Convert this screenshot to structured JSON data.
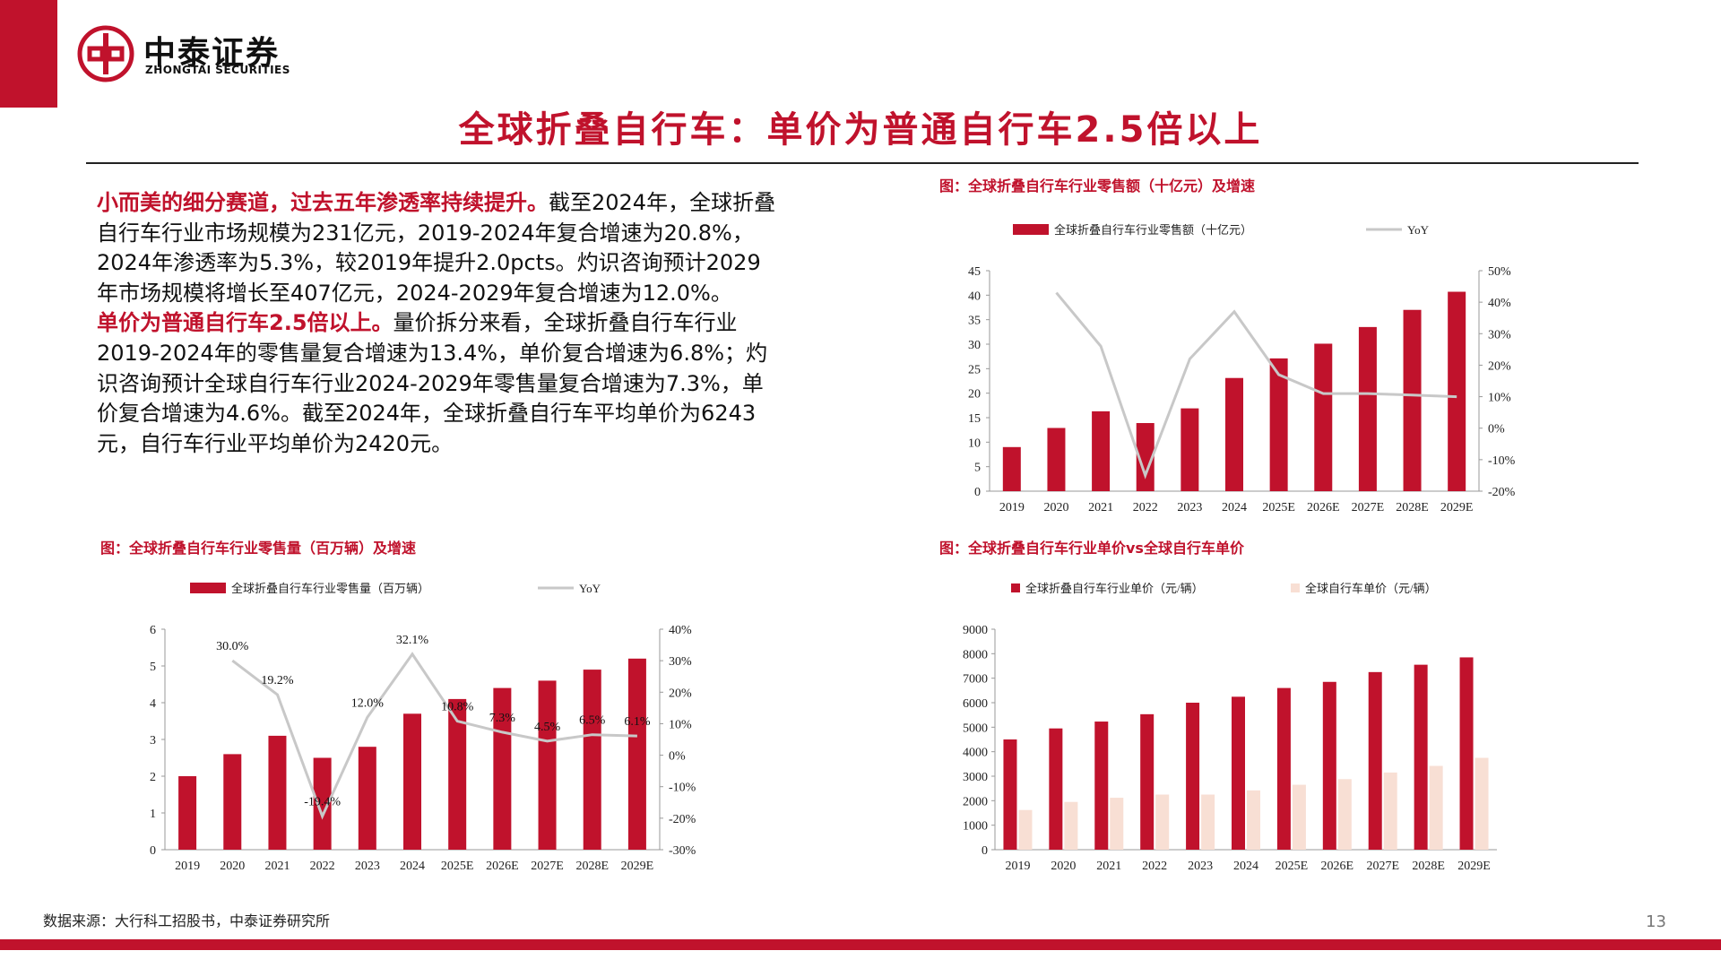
{
  "brand": {
    "name_cn": "中泰证券",
    "name_en": "ZHONGTAI SECURITIES",
    "color": "#c0122c"
  },
  "slide": {
    "title": "全球折叠自行车：单价为普通自行车2.5倍以上",
    "paragraph1_highlight": "小而美的细分赛道，过去五年渗透率持续提升。",
    "paragraph1_text": "截至2024年，全球折叠自行车行业市场规模为231亿元，2019-2024年复合增速为20.8%，2024年渗透率为5.3%，较2019年提升2.0pcts。灼识咨询预计2029年市场规模将增长至407亿元，2024-2029年复合增速为12.0%。",
    "paragraph2_highlight": "单价为普通自行车2.5倍以上。",
    "paragraph2_text": "量价拆分来看，全球折叠自行车行业2019-2024年的零售量复合增速为13.4%，单价复合增速为6.8%；灼识咨询预计全球自行车行业2024-2029年零售量复合增速为7.3%，单价复合增速为4.6%。截至2024年，全球折叠自行车平均单价为6243元，自行车行业平均单价为2420元。",
    "source": "数据来源：大行科工招股书，中泰证券研究所",
    "page_number": "13"
  },
  "chart_data": [
    {
      "id": "retail-sales",
      "type": "bar",
      "caption": "图：全球折叠自行车行业零售额（十亿元）及增速",
      "categories": [
        "2019",
        "2020",
        "2021",
        "2022",
        "2023",
        "2024",
        "2025E",
        "2026E",
        "2027E",
        "2028E",
        "2029E"
      ],
      "series": [
        {
          "name": "全球折叠自行车行业零售额（十亿元）",
          "type": "bar",
          "axis": "left",
          "color": "#c0122c",
          "values": [
            9.0,
            12.9,
            16.3,
            13.9,
            16.9,
            23.1,
            27.1,
            30.1,
            33.5,
            37.0,
            40.7
          ]
        },
        {
          "name": "YoY",
          "type": "line",
          "axis": "right",
          "color": "#c8c8c8",
          "values": [
            null,
            0.43,
            0.26,
            -0.15,
            0.22,
            0.37,
            0.17,
            0.11,
            0.11,
            0.105,
            0.1
          ]
        }
      ],
      "ylim_left": [
        0,
        45
      ],
      "yticks_left": [
        "0",
        "5",
        "10",
        "15",
        "20",
        "25",
        "30",
        "35",
        "40",
        "45"
      ],
      "ylim_right": [
        -0.2,
        0.5
      ],
      "yticks_right": [
        "-20%",
        "-10%",
        "0%",
        "10%",
        "20%",
        "30%",
        "40%",
        "50%"
      ],
      "legend": "top",
      "grid": false
    },
    {
      "id": "retail-volume",
      "type": "bar",
      "caption": "图：全球折叠自行车行业零售量（百万辆）及增速",
      "categories": [
        "2019",
        "2020",
        "2021",
        "2022",
        "2023",
        "2024",
        "2025E",
        "2026E",
        "2027E",
        "2028E",
        "2029E"
      ],
      "series": [
        {
          "name": "全球折叠自行车行业零售量（百万辆）",
          "type": "bar",
          "axis": "left",
          "color": "#c0122c",
          "values": [
            2.0,
            2.6,
            3.1,
            2.5,
            2.8,
            3.7,
            4.1,
            4.4,
            4.6,
            4.9,
            5.2
          ]
        },
        {
          "name": "YoY",
          "type": "line",
          "axis": "right",
          "color": "#c8c8c8",
          "values": [
            null,
            0.3,
            0.192,
            -0.194,
            0.12,
            0.321,
            0.108,
            0.073,
            0.045,
            0.065,
            0.061
          ],
          "labels": [
            "",
            "30.0%",
            "19.2%",
            "-19.4%",
            "12.0%",
            "32.1%",
            "10.8%",
            "7.3%",
            "4.5%",
            "6.5%",
            "6.1%"
          ]
        }
      ],
      "ylim_left": [
        0,
        6
      ],
      "yticks_left": [
        "0",
        "1",
        "2",
        "3",
        "4",
        "5",
        "6"
      ],
      "ylim_right": [
        -0.3,
        0.4
      ],
      "yticks_right": [
        "-30%",
        "-20%",
        "-10%",
        "0%",
        "10%",
        "20%",
        "30%",
        "40%"
      ],
      "legend": "top",
      "grid": false
    },
    {
      "id": "unit-price",
      "type": "bar",
      "caption": "图：全球折叠自行车行业单价vs全球自行车单价",
      "categories": [
        "2019",
        "2020",
        "2021",
        "2022",
        "2023",
        "2024",
        "2025E",
        "2026E",
        "2027E",
        "2028E",
        "2029E"
      ],
      "series": [
        {
          "name": "全球折叠自行车行业单价（元/辆）",
          "color": "#c0122c",
          "values": [
            4500,
            4950,
            5230,
            5530,
            6000,
            6243,
            6600,
            6850,
            7250,
            7550,
            7850
          ]
        },
        {
          "name": "全球自行车单价（元/辆）",
          "color": "#f8dfd4",
          "values": [
            1620,
            1950,
            2120,
            2250,
            2250,
            2420,
            2650,
            2880,
            3150,
            3420,
            3750
          ]
        }
      ],
      "ylim": [
        0,
        9000
      ],
      "yticks": [
        "0",
        "1000",
        "2000",
        "3000",
        "4000",
        "5000",
        "6000",
        "7000",
        "8000",
        "9000"
      ],
      "legend": "top",
      "grid": false
    }
  ]
}
